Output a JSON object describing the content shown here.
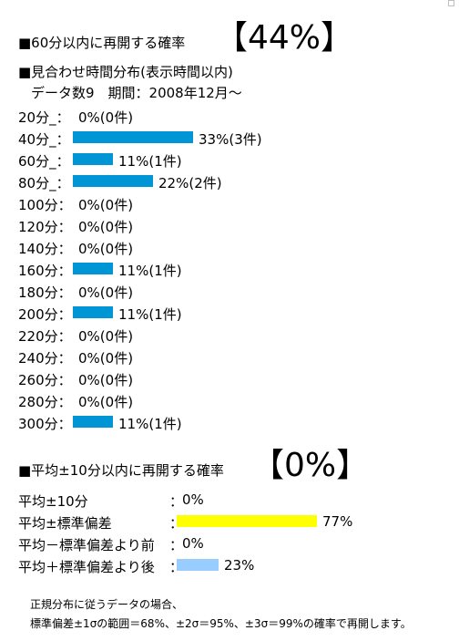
{
  "section1": {
    "heading": "■60分以内に再開する確率",
    "rate": "【44%】"
  },
  "section2": {
    "heading": "■見合わせ時間分布(表示時間以内)",
    "meta": "データ数9　期間：2008年12月～"
  },
  "bar_color": "#0096d6",
  "distribution": [
    {
      "label": "20分_：",
      "percent": 0,
      "text": "0%(0件)"
    },
    {
      "label": "40分_：",
      "percent": 33,
      "text": "33%(3件)"
    },
    {
      "label": "60分_：",
      "percent": 11,
      "text": "11%(1件)"
    },
    {
      "label": "80分_：",
      "percent": 22,
      "text": "22%(2件)"
    },
    {
      "label": "100分：",
      "percent": 0,
      "text": "0%(0件)"
    },
    {
      "label": "120分：",
      "percent": 0,
      "text": "0%(0件)"
    },
    {
      "label": "140分：",
      "percent": 0,
      "text": "0%(0件)"
    },
    {
      "label": "160分：",
      "percent": 11,
      "text": "11%(1件)"
    },
    {
      "label": "180分：",
      "percent": 0,
      "text": "0%(0件)"
    },
    {
      "label": "200分：",
      "percent": 11,
      "text": "11%(1件)"
    },
    {
      "label": "220分：",
      "percent": 0,
      "text": "0%(0件)"
    },
    {
      "label": "240分：",
      "percent": 0,
      "text": "0%(0件)"
    },
    {
      "label": "260分：",
      "percent": 0,
      "text": "0%(0件)"
    },
    {
      "label": "280分：",
      "percent": 0,
      "text": "0%(0件)"
    },
    {
      "label": "300分：",
      "percent": 11,
      "text": "11%(1件)"
    }
  ],
  "section3": {
    "heading": "■平均±10分以内に再開する確率",
    "rate": "【0%】"
  },
  "summary": [
    {
      "label": "平均±10分",
      "colon": "：",
      "percent": 0,
      "text": "0%",
      "color": ""
    },
    {
      "label": "平均±標準偏差",
      "colon": "：",
      "percent": 77,
      "text": "77%",
      "color": "#ffff00"
    },
    {
      "label": "平均－標準偏差より前",
      "colon": "：",
      "percent": 0,
      "text": "0%",
      "color": ""
    },
    {
      "label": "平均＋標準偏差より後",
      "colon": "：",
      "percent": 23,
      "text": "23%",
      "color": "#99ccff"
    }
  ],
  "note": {
    "line1": "正規分布に従うデータの場合、",
    "line2": "標準偏差±1σの範囲＝68%、±2σ＝95%、±3σ＝99%の確率で再開します。"
  }
}
